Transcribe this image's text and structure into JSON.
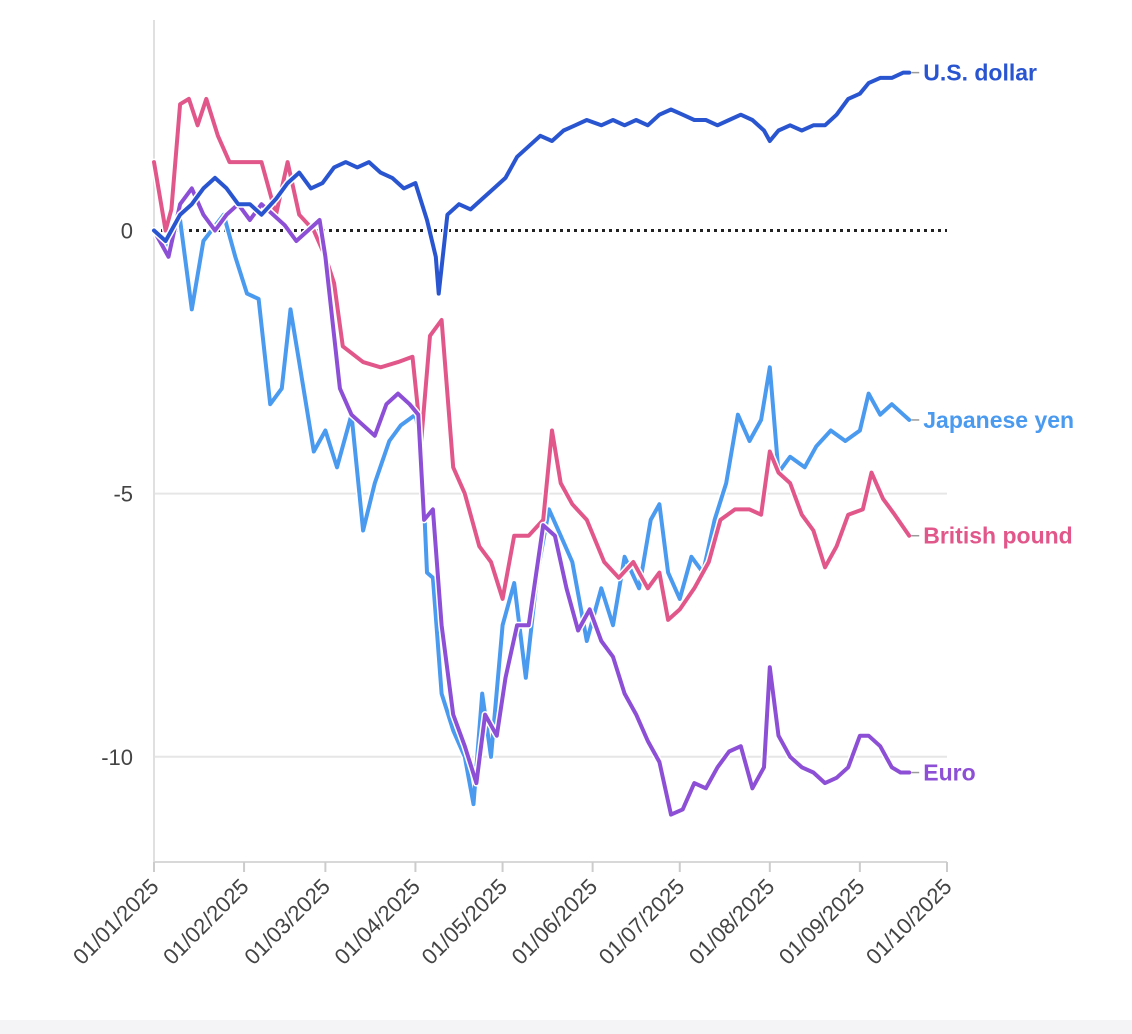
{
  "chart_data": {
    "type": "line",
    "title": "",
    "xlabel": "",
    "ylabel": "",
    "x_domain": [
      "2025-01-01",
      "2025-10-01"
    ],
    "ylim": [
      -12,
      4
    ],
    "y_ticks": [
      0,
      -5,
      -10
    ],
    "y_tick_labels": [
      "0",
      "-5",
      "-10"
    ],
    "x_ticks": [
      "2025-01-01",
      "2025-02-01",
      "2025-03-01",
      "2025-04-01",
      "2025-05-01",
      "2025-06-01",
      "2025-07-01",
      "2025-08-01",
      "2025-09-01",
      "2025-10-01"
    ],
    "x_tick_labels": [
      "01/01/2025",
      "01/02/2025",
      "01/03/2025",
      "01/04/2025",
      "01/05/2025",
      "01/06/2025",
      "01/07/2025",
      "01/08/2025",
      "01/09/2025",
      "01/10/2025"
    ],
    "reference_line": {
      "y": 0,
      "style": "dotted",
      "color": "#222222"
    },
    "grid": "horizontal",
    "series": [
      {
        "name": "Japanese yen",
        "label": "Japanese yen",
        "color": "#4a9af0",
        "points": [
          [
            "2025-01-01",
            0
          ],
          [
            "2025-01-05",
            -0.3
          ],
          [
            "2025-01-10",
            0.2
          ],
          [
            "2025-01-14",
            -1.5
          ],
          [
            "2025-01-18",
            -0.2
          ],
          [
            "2025-01-25",
            0.3
          ],
          [
            "2025-01-29",
            -0.5
          ],
          [
            "2025-02-02",
            -1.2
          ],
          [
            "2025-02-06",
            -1.3
          ],
          [
            "2025-02-10",
            -3.3
          ],
          [
            "2025-02-14",
            -3
          ],
          [
            "2025-02-17",
            -1.5
          ],
          [
            "2025-02-20",
            -2.5
          ],
          [
            "2025-02-25",
            -4.2
          ],
          [
            "2025-03-01",
            -3.8
          ],
          [
            "2025-03-05",
            -4.5
          ],
          [
            "2025-03-10",
            -3.5
          ],
          [
            "2025-03-14",
            -5.7
          ],
          [
            "2025-03-18",
            -4.8
          ],
          [
            "2025-03-23",
            -4
          ],
          [
            "2025-03-27",
            -3.7
          ],
          [
            "2025-04-01",
            -3.5
          ],
          [
            "2025-04-03",
            -4
          ],
          [
            "2025-04-05",
            -6.5
          ],
          [
            "2025-04-07",
            -6.6
          ],
          [
            "2025-04-10",
            -8.8
          ],
          [
            "2025-04-14",
            -9.5
          ],
          [
            "2025-04-18",
            -10
          ],
          [
            "2025-04-21",
            -10.9
          ],
          [
            "2025-04-24",
            -8.8
          ],
          [
            "2025-04-27",
            -10
          ],
          [
            "2025-05-01",
            -7.5
          ],
          [
            "2025-05-05",
            -6.7
          ],
          [
            "2025-05-09",
            -8.5
          ],
          [
            "2025-05-13",
            -6.5
          ],
          [
            "2025-05-17",
            -5.3
          ],
          [
            "2025-05-21",
            -5.8
          ],
          [
            "2025-05-25",
            -6.3
          ],
          [
            "2025-05-30",
            -7.8
          ],
          [
            "2025-06-04",
            -6.8
          ],
          [
            "2025-06-08",
            -7.5
          ],
          [
            "2025-06-12",
            -6.2
          ],
          [
            "2025-06-17",
            -6.8
          ],
          [
            "2025-06-21",
            -5.5
          ],
          [
            "2025-06-24",
            -5.2
          ],
          [
            "2025-06-27",
            -6.5
          ],
          [
            "2025-07-01",
            -7
          ],
          [
            "2025-07-05",
            -6.2
          ],
          [
            "2025-07-09",
            -6.5
          ],
          [
            "2025-07-13",
            -5.5
          ],
          [
            "2025-07-17",
            -4.8
          ],
          [
            "2025-07-21",
            -3.5
          ],
          [
            "2025-07-25",
            -4
          ],
          [
            "2025-07-29",
            -3.6
          ],
          [
            "2025-08-01",
            -2.6
          ],
          [
            "2025-08-04",
            -4.6
          ],
          [
            "2025-08-08",
            -4.3
          ],
          [
            "2025-08-13",
            -4.5
          ],
          [
            "2025-08-17",
            -4.1
          ],
          [
            "2025-08-22",
            -3.8
          ],
          [
            "2025-08-27",
            -4
          ],
          [
            "2025-09-01",
            -3.8
          ],
          [
            "2025-09-04",
            -3.1
          ],
          [
            "2025-09-08",
            -3.5
          ],
          [
            "2025-09-12",
            -3.3
          ],
          [
            "2025-09-16",
            -3.5
          ],
          [
            "2025-09-18",
            -3.6
          ]
        ]
      },
      {
        "name": "British pound",
        "label": "British pound",
        "color": "#e2578a",
        "points": [
          [
            "2025-01-01",
            1.3
          ],
          [
            "2025-01-05",
            0
          ],
          [
            "2025-01-07",
            0.4
          ],
          [
            "2025-01-10",
            2.4
          ],
          [
            "2025-01-13",
            2.5
          ],
          [
            "2025-01-16",
            2
          ],
          [
            "2025-01-19",
            2.5
          ],
          [
            "2025-01-23",
            1.8
          ],
          [
            "2025-01-27",
            1.3
          ],
          [
            "2025-02-07",
            1.3
          ],
          [
            "2025-02-12",
            0.3
          ],
          [
            "2025-02-16",
            1.3
          ],
          [
            "2025-02-20",
            0.3
          ],
          [
            "2025-02-25",
            0
          ],
          [
            "2025-03-01",
            -0.5
          ],
          [
            "2025-03-04",
            -1
          ],
          [
            "2025-03-07",
            -2.2
          ],
          [
            "2025-03-14",
            -2.5
          ],
          [
            "2025-03-20",
            -2.6
          ],
          [
            "2025-03-26",
            -2.5
          ],
          [
            "2025-03-31",
            -2.4
          ],
          [
            "2025-04-03",
            -4
          ],
          [
            "2025-04-06",
            -2
          ],
          [
            "2025-04-10",
            -1.7
          ],
          [
            "2025-04-14",
            -4.5
          ],
          [
            "2025-04-18",
            -5
          ],
          [
            "2025-04-23",
            -6
          ],
          [
            "2025-04-27",
            -6.3
          ],
          [
            "2025-05-01",
            -7
          ],
          [
            "2025-05-05",
            -5.8
          ],
          [
            "2025-05-10",
            -5.8
          ],
          [
            "2025-05-15",
            -5.5
          ],
          [
            "2025-05-18",
            -3.8
          ],
          [
            "2025-05-21",
            -4.8
          ],
          [
            "2025-05-25",
            -5.2
          ],
          [
            "2025-05-30",
            -5.5
          ],
          [
            "2025-06-05",
            -6.3
          ],
          [
            "2025-06-10",
            -6.6
          ],
          [
            "2025-06-15",
            -6.3
          ],
          [
            "2025-06-20",
            -6.8
          ],
          [
            "2025-06-24",
            -6.5
          ],
          [
            "2025-06-27",
            -7.4
          ],
          [
            "2025-07-01",
            -7.2
          ],
          [
            "2025-07-06",
            -6.8
          ],
          [
            "2025-07-11",
            -6.3
          ],
          [
            "2025-07-15",
            -5.5
          ],
          [
            "2025-07-20",
            -5.3
          ],
          [
            "2025-07-25",
            -5.3
          ],
          [
            "2025-07-29",
            -5.4
          ],
          [
            "2025-08-01",
            -4.2
          ],
          [
            "2025-08-04",
            -4.6
          ],
          [
            "2025-08-08",
            -4.8
          ],
          [
            "2025-08-12",
            -5.4
          ],
          [
            "2025-08-16",
            -5.7
          ],
          [
            "2025-08-20",
            -6.4
          ],
          [
            "2025-08-24",
            -6
          ],
          [
            "2025-08-28",
            -5.4
          ],
          [
            "2025-09-02",
            -5.3
          ],
          [
            "2025-09-05",
            -4.6
          ],
          [
            "2025-09-09",
            -5.1
          ],
          [
            "2025-09-13",
            -5.4
          ],
          [
            "2025-09-18",
            -5.8
          ]
        ]
      },
      {
        "name": "Euro",
        "label": "Euro",
        "color": "#8c4fd6",
        "points": [
          [
            "2025-01-01",
            0
          ],
          [
            "2025-01-06",
            -0.5
          ],
          [
            "2025-01-10",
            0.5
          ],
          [
            "2025-01-14",
            0.8
          ],
          [
            "2025-01-18",
            0.3
          ],
          [
            "2025-01-22",
            0
          ],
          [
            "2025-01-26",
            0.3
          ],
          [
            "2025-01-30",
            0.5
          ],
          [
            "2025-02-03",
            0.2
          ],
          [
            "2025-02-07",
            0.5
          ],
          [
            "2025-02-11",
            0.3
          ],
          [
            "2025-02-15",
            0.1
          ],
          [
            "2025-02-19",
            -0.2
          ],
          [
            "2025-02-23",
            0
          ],
          [
            "2025-02-27",
            0.2
          ],
          [
            "2025-03-01",
            -0.5
          ],
          [
            "2025-03-04",
            -2
          ],
          [
            "2025-03-06",
            -3
          ],
          [
            "2025-03-10",
            -3.5
          ],
          [
            "2025-03-14",
            -3.7
          ],
          [
            "2025-03-18",
            -3.9
          ],
          [
            "2025-03-22",
            -3.3
          ],
          [
            "2025-03-26",
            -3.1
          ],
          [
            "2025-03-30",
            -3.3
          ],
          [
            "2025-04-02",
            -3.5
          ],
          [
            "2025-04-04",
            -5.5
          ],
          [
            "2025-04-07",
            -5.3
          ],
          [
            "2025-04-10",
            -7.5
          ],
          [
            "2025-04-14",
            -9.2
          ],
          [
            "2025-04-18",
            -9.8
          ],
          [
            "2025-04-22",
            -10.5
          ],
          [
            "2025-04-25",
            -9.2
          ],
          [
            "2025-04-29",
            -9.6
          ],
          [
            "2025-05-02",
            -8.5
          ],
          [
            "2025-05-06",
            -7.5
          ],
          [
            "2025-05-10",
            -7.5
          ],
          [
            "2025-05-15",
            -5.6
          ],
          [
            "2025-05-19",
            -5.8
          ],
          [
            "2025-05-23",
            -6.8
          ],
          [
            "2025-05-27",
            -7.6
          ],
          [
            "2025-05-31",
            -7.2
          ],
          [
            "2025-06-04",
            -7.8
          ],
          [
            "2025-06-08",
            -8.1
          ],
          [
            "2025-06-12",
            -8.8
          ],
          [
            "2025-06-16",
            -9.2
          ],
          [
            "2025-06-20",
            -9.7
          ],
          [
            "2025-06-24",
            -10.1
          ],
          [
            "2025-06-28",
            -11.1
          ],
          [
            "2025-07-02",
            -11
          ],
          [
            "2025-07-06",
            -10.5
          ],
          [
            "2025-07-10",
            -10.6
          ],
          [
            "2025-07-14",
            -10.2
          ],
          [
            "2025-07-18",
            -9.9
          ],
          [
            "2025-07-22",
            -9.8
          ],
          [
            "2025-07-26",
            -10.6
          ],
          [
            "2025-07-30",
            -10.2
          ],
          [
            "2025-08-01",
            -8.3
          ],
          [
            "2025-08-04",
            -9.6
          ],
          [
            "2025-08-08",
            -10
          ],
          [
            "2025-08-12",
            -10.2
          ],
          [
            "2025-08-16",
            -10.3
          ],
          [
            "2025-08-20",
            -10.5
          ],
          [
            "2025-08-24",
            -10.4
          ],
          [
            "2025-08-28",
            -10.2
          ],
          [
            "2025-09-01",
            -9.6
          ],
          [
            "2025-09-04",
            -9.6
          ],
          [
            "2025-09-08",
            -9.8
          ],
          [
            "2025-09-12",
            -10.2
          ],
          [
            "2025-09-15",
            -10.3
          ],
          [
            "2025-09-18",
            -10.3
          ]
        ]
      },
      {
        "name": "U.S. dollar",
        "label": "U.S. dollar",
        "color": "#2a55d0",
        "points": [
          [
            "2025-01-01",
            0
          ],
          [
            "2025-01-05",
            -0.2
          ],
          [
            "2025-01-10",
            0.3
          ],
          [
            "2025-01-14",
            0.5
          ],
          [
            "2025-01-18",
            0.8
          ],
          [
            "2025-01-22",
            1
          ],
          [
            "2025-01-26",
            0.8
          ],
          [
            "2025-01-30",
            0.5
          ],
          [
            "2025-02-03",
            0.5
          ],
          [
            "2025-02-07",
            0.3
          ],
          [
            "2025-02-12",
            0.6
          ],
          [
            "2025-02-16",
            0.9
          ],
          [
            "2025-02-20",
            1.1
          ],
          [
            "2025-02-24",
            0.8
          ],
          [
            "2025-02-28",
            0.9
          ],
          [
            "2025-03-04",
            1.2
          ],
          [
            "2025-03-08",
            1.3
          ],
          [
            "2025-03-12",
            1.2
          ],
          [
            "2025-03-16",
            1.3
          ],
          [
            "2025-03-20",
            1.1
          ],
          [
            "2025-03-24",
            1
          ],
          [
            "2025-03-28",
            0.8
          ],
          [
            "2025-04-01",
            0.9
          ],
          [
            "2025-04-05",
            0.2
          ],
          [
            "2025-04-08",
            -0.5
          ],
          [
            "2025-04-09",
            -1.2
          ],
          [
            "2025-04-12",
            0.3
          ],
          [
            "2025-04-16",
            0.5
          ],
          [
            "2025-04-20",
            0.4
          ],
          [
            "2025-04-24",
            0.6
          ],
          [
            "2025-04-28",
            0.8
          ],
          [
            "2025-05-02",
            1
          ],
          [
            "2025-05-06",
            1.4
          ],
          [
            "2025-05-10",
            1.6
          ],
          [
            "2025-05-14",
            1.8
          ],
          [
            "2025-05-18",
            1.7
          ],
          [
            "2025-05-22",
            1.9
          ],
          [
            "2025-05-26",
            2
          ],
          [
            "2025-05-30",
            2.1
          ],
          [
            "2025-06-04",
            2
          ],
          [
            "2025-06-08",
            2.1
          ],
          [
            "2025-06-12",
            2
          ],
          [
            "2025-06-16",
            2.1
          ],
          [
            "2025-06-20",
            2
          ],
          [
            "2025-06-24",
            2.2
          ],
          [
            "2025-06-28",
            2.3
          ],
          [
            "2025-07-02",
            2.2
          ],
          [
            "2025-07-06",
            2.1
          ],
          [
            "2025-07-10",
            2.1
          ],
          [
            "2025-07-14",
            2
          ],
          [
            "2025-07-18",
            2.1
          ],
          [
            "2025-07-22",
            2.2
          ],
          [
            "2025-07-26",
            2.1
          ],
          [
            "2025-07-30",
            1.9
          ],
          [
            "2025-08-01",
            1.7
          ],
          [
            "2025-08-04",
            1.9
          ],
          [
            "2025-08-08",
            2
          ],
          [
            "2025-08-12",
            1.9
          ],
          [
            "2025-08-16",
            2
          ],
          [
            "2025-08-20",
            2
          ],
          [
            "2025-08-24",
            2.2
          ],
          [
            "2025-08-28",
            2.5
          ],
          [
            "2025-09-01",
            2.6
          ],
          [
            "2025-09-04",
            2.8
          ],
          [
            "2025-09-08",
            2.9
          ],
          [
            "2025-09-12",
            2.9
          ],
          [
            "2025-09-16",
            3
          ],
          [
            "2025-09-18",
            3
          ]
        ]
      }
    ]
  }
}
